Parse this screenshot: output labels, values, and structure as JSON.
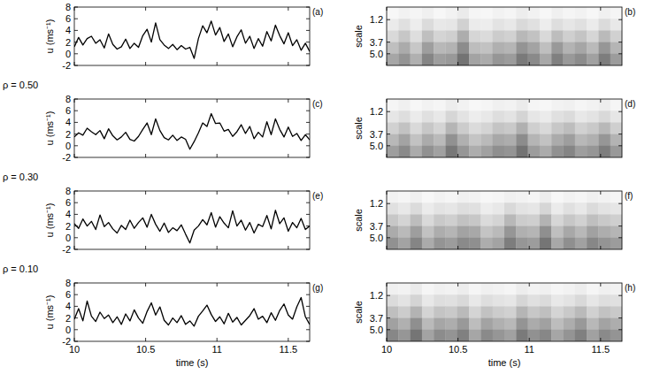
{
  "chart_data": [
    {
      "type": "line",
      "panel_label": "(a)",
      "ylabel": "u (ms⁻¹)",
      "tick_labels": "y",
      "xlim": [
        10,
        11.65
      ],
      "xticks": [
        10,
        10.5,
        11,
        11.5
      ],
      "ylim": [
        -2,
        8
      ],
      "yticks": [
        -2,
        0,
        2,
        4,
        6,
        8
      ],
      "color": "#000000",
      "x": [
        10,
        10.03,
        10.06,
        10.09,
        10.12,
        10.15,
        10.18,
        10.21,
        10.24,
        10.27,
        10.3,
        10.33,
        10.36,
        10.39,
        10.42,
        10.45,
        10.48,
        10.51,
        10.54,
        10.57,
        10.6,
        10.63,
        10.66,
        10.69,
        10.72,
        10.75,
        10.78,
        10.81,
        10.84,
        10.87,
        10.9,
        10.93,
        10.96,
        10.99,
        11.02,
        11.05,
        11.08,
        11.11,
        11.14,
        11.17,
        11.2,
        11.23,
        11.26,
        11.29,
        11.32,
        11.35,
        11.38,
        11.41,
        11.44,
        11.47,
        11.5,
        11.53,
        11.56,
        11.59,
        11.62,
        11.65
      ],
      "values": [
        1.2,
        2.8,
        1.5,
        2.6,
        3.0,
        1.8,
        2.4,
        1.0,
        3.4,
        1.6,
        0.8,
        1.2,
        2.5,
        0.9,
        1.8,
        1.1,
        3.1,
        4.2,
        2.0,
        5.3,
        2.4,
        1.5,
        0.9,
        1.6,
        0.7,
        1.4,
        0.8,
        1.1,
        -0.8,
        2.6,
        4.8,
        3.6,
        5.6,
        3.2,
        4.5,
        2.1,
        3.4,
        1.2,
        2.9,
        4.1,
        1.8,
        3.0,
        0.9,
        2.6,
        1.3,
        3.8,
        2.2,
        4.9,
        3.1,
        1.7,
        3.6,
        1.4,
        2.4,
        0.6,
        1.8,
        0.4
      ]
    },
    {
      "type": "heatmap",
      "panel_label": "(b)",
      "ylabel": "scale",
      "tick_labels": "y",
      "xlim": [
        10,
        11.65
      ],
      "xticks": [
        10,
        10.5,
        11,
        11.5
      ],
      "ylim": [
        6.3,
        -0.2
      ],
      "yticks": [
        1.2,
        3.7,
        {
          "value": 5,
          "label": "5.0"
        }
      ],
      "cells": [
        [
          0.03,
          0.05,
          0.04,
          0.06,
          0.03,
          0.05,
          0.08,
          0.04,
          0.03,
          0.05,
          0.04,
          0.07,
          0.05,
          0.03,
          0.06,
          0.04,
          0.05,
          0.03,
          0.06,
          0.04
        ],
        [
          0.08,
          0.12,
          0.07,
          0.14,
          0.09,
          0.1,
          0.18,
          0.08,
          0.07,
          0.11,
          0.09,
          0.15,
          0.12,
          0.07,
          0.13,
          0.1,
          0.12,
          0.08,
          0.14,
          0.09
        ],
        [
          0.15,
          0.22,
          0.13,
          0.25,
          0.17,
          0.19,
          0.32,
          0.16,
          0.14,
          0.2,
          0.18,
          0.28,
          0.24,
          0.15,
          0.26,
          0.19,
          0.23,
          0.16,
          0.27,
          0.18
        ],
        [
          0.25,
          0.33,
          0.22,
          0.38,
          0.28,
          0.3,
          0.45,
          0.26,
          0.24,
          0.31,
          0.29,
          0.42,
          0.36,
          0.25,
          0.4,
          0.3,
          0.35,
          0.27,
          0.41,
          0.29
        ],
        [
          0.35,
          0.42,
          0.31,
          0.48,
          0.38,
          0.4,
          0.55,
          0.36,
          0.33,
          0.41,
          0.39,
          0.52,
          0.46,
          0.34,
          0.5,
          0.4,
          0.45,
          0.37,
          0.51,
          0.39
        ]
      ]
    },
    {
      "type": "line",
      "panel_label": "(c)",
      "ylabel": "u (ms⁻¹)",
      "annotation": "ρ = 0.50",
      "tick_labels": "y",
      "xlim": [
        10,
        11.65
      ],
      "xticks": [
        10,
        10.5,
        11,
        11.5
      ],
      "ylim": [
        -2,
        8
      ],
      "yticks": [
        -2,
        0,
        2,
        4,
        6,
        8
      ],
      "color": "#000000",
      "x": [
        10,
        10.03,
        10.06,
        10.09,
        10.12,
        10.15,
        10.18,
        10.21,
        10.24,
        10.27,
        10.3,
        10.33,
        10.36,
        10.39,
        10.42,
        10.45,
        10.48,
        10.51,
        10.54,
        10.57,
        10.6,
        10.63,
        10.66,
        10.69,
        10.72,
        10.75,
        10.78,
        10.81,
        10.84,
        10.87,
        10.9,
        10.93,
        10.96,
        10.99,
        11.02,
        11.05,
        11.08,
        11.11,
        11.14,
        11.17,
        11.2,
        11.23,
        11.26,
        11.29,
        11.32,
        11.35,
        11.38,
        11.41,
        11.44,
        11.47,
        11.5,
        11.53,
        11.56,
        11.59,
        11.62,
        11.65
      ],
      "values": [
        1.5,
        2.2,
        1.8,
        3.0,
        2.4,
        1.9,
        2.6,
        1.2,
        2.9,
        1.7,
        1.0,
        1.5,
        2.3,
        1.1,
        0.8,
        1.6,
        2.8,
        3.9,
        1.9,
        4.6,
        2.6,
        1.4,
        1.0,
        1.8,
        0.9,
        1.5,
        1.1,
        -0.6,
        0.7,
        2.2,
        3.9,
        3.3,
        5.5,
        3.8,
        3.9,
        2.5,
        2.8,
        1.6,
        2.4,
        3.6,
        2.1,
        3.3,
        1.2,
        2.3,
        1.5,
        4.1,
        1.9,
        4.6,
        2.8,
        1.5,
        3.2,
        1.6,
        2.1,
        0.9,
        1.9,
        1.0
      ]
    },
    {
      "type": "heatmap",
      "panel_label": "(d)",
      "ylabel": "scale",
      "tick_labels": "y",
      "xlim": [
        10,
        11.65
      ],
      "xticks": [
        10,
        10.5,
        11,
        11.5
      ],
      "ylim": [
        6.3,
        -0.2
      ],
      "yticks": [
        1.2,
        3.7,
        {
          "value": 5,
          "label": "5.0"
        }
      ],
      "cells": [
        [
          0.04,
          0.06,
          0.03,
          0.05,
          0.04,
          0.07,
          0.05,
          0.03,
          0.04,
          0.06,
          0.05,
          0.08,
          0.04,
          0.03,
          0.05,
          0.06,
          0.04,
          0.05,
          0.07,
          0.04
        ],
        [
          0.1,
          0.13,
          0.08,
          0.12,
          0.09,
          0.16,
          0.11,
          0.07,
          0.09,
          0.13,
          0.11,
          0.17,
          0.1,
          0.08,
          0.12,
          0.14,
          0.09,
          0.11,
          0.15,
          0.1
        ],
        [
          0.18,
          0.24,
          0.15,
          0.22,
          0.17,
          0.29,
          0.2,
          0.14,
          0.17,
          0.23,
          0.21,
          0.31,
          0.19,
          0.15,
          0.22,
          0.26,
          0.18,
          0.21,
          0.28,
          0.19
        ],
        [
          0.28,
          0.36,
          0.24,
          0.33,
          0.27,
          0.43,
          0.31,
          0.23,
          0.27,
          0.34,
          0.32,
          0.45,
          0.29,
          0.24,
          0.33,
          0.38,
          0.28,
          0.31,
          0.41,
          0.3
        ],
        [
          0.38,
          0.46,
          0.33,
          0.43,
          0.37,
          0.53,
          0.41,
          0.32,
          0.37,
          0.44,
          0.42,
          0.55,
          0.39,
          0.33,
          0.43,
          0.48,
          0.38,
          0.41,
          0.51,
          0.4
        ]
      ]
    },
    {
      "type": "line",
      "panel_label": "(e)",
      "ylabel": "u (ms⁻¹)",
      "annotation": "ρ = 0.30",
      "tick_labels": "y",
      "xlim": [
        10,
        11.65
      ],
      "xticks": [
        10,
        10.5,
        11,
        11.5
      ],
      "ylim": [
        -2,
        8
      ],
      "yticks": [
        -2,
        0,
        2,
        4,
        6,
        8
      ],
      "color": "#000000",
      "x": [
        10,
        10.03,
        10.06,
        10.09,
        10.12,
        10.15,
        10.18,
        10.21,
        10.24,
        10.27,
        10.3,
        10.33,
        10.36,
        10.39,
        10.42,
        10.45,
        10.48,
        10.51,
        10.54,
        10.57,
        10.6,
        10.63,
        10.66,
        10.69,
        10.72,
        10.75,
        10.78,
        10.81,
        10.84,
        10.87,
        10.9,
        10.93,
        10.96,
        10.99,
        11.02,
        11.05,
        11.08,
        11.11,
        11.14,
        11.17,
        11.2,
        11.23,
        11.26,
        11.29,
        11.32,
        11.35,
        11.38,
        11.41,
        11.44,
        11.47,
        11.5,
        11.53,
        11.56,
        11.59,
        11.62,
        11.65
      ],
      "values": [
        2.4,
        1.6,
        3.2,
        2.0,
        2.8,
        1.4,
        3.9,
        1.9,
        2.6,
        1.5,
        0.8,
        2.1,
        1.4,
        3.0,
        1.6,
        2.6,
        3.4,
        1.8,
        4.0,
        2.3,
        1.1,
        2.5,
        0.9,
        1.7,
        1.2,
        2.2,
        0.6,
        -0.9,
        1.3,
        2.0,
        3.1,
        2.2,
        4.3,
        1.8,
        3.6,
        2.5,
        1.7,
        4.6,
        2.0,
        3.0,
        1.3,
        2.6,
        0.8,
        2.3,
        1.9,
        3.8,
        1.5,
        4.7,
        2.4,
        3.4,
        1.1,
        2.6,
        1.7,
        3.3,
        1.4,
        2.0
      ]
    },
    {
      "type": "heatmap",
      "panel_label": "(f)",
      "ylabel": "scale",
      "tick_labels": "y",
      "xlim": [
        10,
        11.65
      ],
      "xticks": [
        10,
        10.5,
        11,
        11.5
      ],
      "ylim": [
        6.3,
        -0.2
      ],
      "yticks": [
        1.2,
        3.7,
        {
          "value": 5,
          "label": "5.0"
        }
      ],
      "cells": [
        [
          0.05,
          0.04,
          0.06,
          0.03,
          0.05,
          0.04,
          0.06,
          0.05,
          0.03,
          0.04,
          0.06,
          0.05,
          0.04,
          0.07,
          0.03,
          0.05,
          0.04,
          0.06,
          0.05,
          0.04
        ],
        [
          0.12,
          0.09,
          0.14,
          0.08,
          0.11,
          0.1,
          0.13,
          0.12,
          0.07,
          0.09,
          0.15,
          0.11,
          0.1,
          0.16,
          0.08,
          0.12,
          0.09,
          0.14,
          0.11,
          0.1
        ],
        [
          0.22,
          0.17,
          0.26,
          0.15,
          0.21,
          0.19,
          0.24,
          0.22,
          0.14,
          0.17,
          0.28,
          0.2,
          0.19,
          0.3,
          0.16,
          0.22,
          0.18,
          0.25,
          0.21,
          0.19
        ],
        [
          0.33,
          0.27,
          0.38,
          0.24,
          0.32,
          0.29,
          0.36,
          0.34,
          0.23,
          0.27,
          0.41,
          0.31,
          0.29,
          0.44,
          0.25,
          0.34,
          0.28,
          0.37,
          0.32,
          0.29
        ],
        [
          0.43,
          0.36,
          0.48,
          0.33,
          0.42,
          0.39,
          0.46,
          0.44,
          0.32,
          0.36,
          0.51,
          0.41,
          0.39,
          0.54,
          0.34,
          0.44,
          0.37,
          0.47,
          0.42,
          0.39
        ]
      ]
    },
    {
      "type": "line",
      "panel_label": "(g)",
      "ylabel": "u (ms⁻¹)",
      "xlabel": "time (s)",
      "annotation": "ρ = 0.10",
      "tick_labels": true,
      "xlim": [
        10,
        11.65
      ],
      "xticks": [
        10,
        10.5,
        11,
        11.5
      ],
      "ylim": [
        -2,
        8
      ],
      "yticks": [
        -2,
        0,
        2,
        4,
        6,
        8
      ],
      "color": "#000000",
      "x": [
        10,
        10.03,
        10.06,
        10.09,
        10.12,
        10.15,
        10.18,
        10.21,
        10.24,
        10.27,
        10.3,
        10.33,
        10.36,
        10.39,
        10.42,
        10.45,
        10.48,
        10.51,
        10.54,
        10.57,
        10.6,
        10.63,
        10.66,
        10.69,
        10.72,
        10.75,
        10.78,
        10.81,
        10.84,
        10.87,
        10.9,
        10.93,
        10.96,
        10.99,
        11.02,
        11.05,
        11.08,
        11.11,
        11.14,
        11.17,
        11.2,
        11.23,
        11.26,
        11.29,
        11.32,
        11.35,
        11.38,
        11.41,
        11.44,
        11.47,
        11.5,
        11.53,
        11.56,
        11.59,
        11.62,
        11.65
      ],
      "values": [
        1.8,
        3.6,
        1.5,
        4.9,
        2.3,
        1.4,
        3.0,
        1.9,
        2.5,
        1.2,
        2.2,
        0.9,
        2.7,
        1.5,
        3.4,
        2.0,
        1.1,
        3.1,
        4.6,
        2.5,
        3.9,
        1.6,
        0.8,
        2.0,
        1.2,
        2.4,
        0.9,
        1.5,
        0.6,
        2.3,
        3.2,
        4.2,
        2.6,
        1.4,
        2.2,
        1.0,
        2.8,
        1.3,
        2.1,
        0.8,
        1.6,
        2.4,
        3.6,
        1.8,
        2.3,
        1.2,
        2.9,
        1.6,
        3.3,
        4.4,
        2.5,
        1.8,
        3.9,
        5.5,
        2.2,
        0.9
      ]
    },
    {
      "type": "heatmap",
      "panel_label": "(h)",
      "ylabel": "scale",
      "xlabel": "time (s)",
      "tick_labels": true,
      "xlim": [
        10,
        11.65
      ],
      "xticks": [
        10,
        10.5,
        11,
        11.5
      ],
      "ylim": [
        6.3,
        -0.2
      ],
      "yticks": [
        1.2,
        3.7,
        {
          "value": 5,
          "label": "5.0"
        }
      ],
      "cells": [
        [
          0.06,
          0.05,
          0.08,
          0.04,
          0.06,
          0.05,
          0.07,
          0.04,
          0.06,
          0.05,
          0.04,
          0.07,
          0.05,
          0.06,
          0.04,
          0.05,
          0.07,
          0.04,
          0.06,
          0.05
        ],
        [
          0.14,
          0.11,
          0.17,
          0.09,
          0.13,
          0.12,
          0.15,
          0.09,
          0.13,
          0.11,
          0.1,
          0.16,
          0.12,
          0.14,
          0.09,
          0.11,
          0.15,
          0.1,
          0.13,
          0.12
        ],
        [
          0.25,
          0.2,
          0.3,
          0.17,
          0.23,
          0.21,
          0.27,
          0.17,
          0.24,
          0.2,
          0.18,
          0.29,
          0.22,
          0.25,
          0.17,
          0.21,
          0.27,
          0.18,
          0.24,
          0.21
        ],
        [
          0.37,
          0.31,
          0.44,
          0.27,
          0.35,
          0.32,
          0.4,
          0.26,
          0.36,
          0.31,
          0.28,
          0.42,
          0.33,
          0.37,
          0.26,
          0.32,
          0.4,
          0.28,
          0.36,
          0.32
        ],
        [
          0.47,
          0.41,
          0.54,
          0.36,
          0.45,
          0.42,
          0.5,
          0.35,
          0.46,
          0.41,
          0.37,
          0.52,
          0.43,
          0.47,
          0.35,
          0.42,
          0.5,
          0.37,
          0.46,
          0.42
        ]
      ]
    }
  ]
}
